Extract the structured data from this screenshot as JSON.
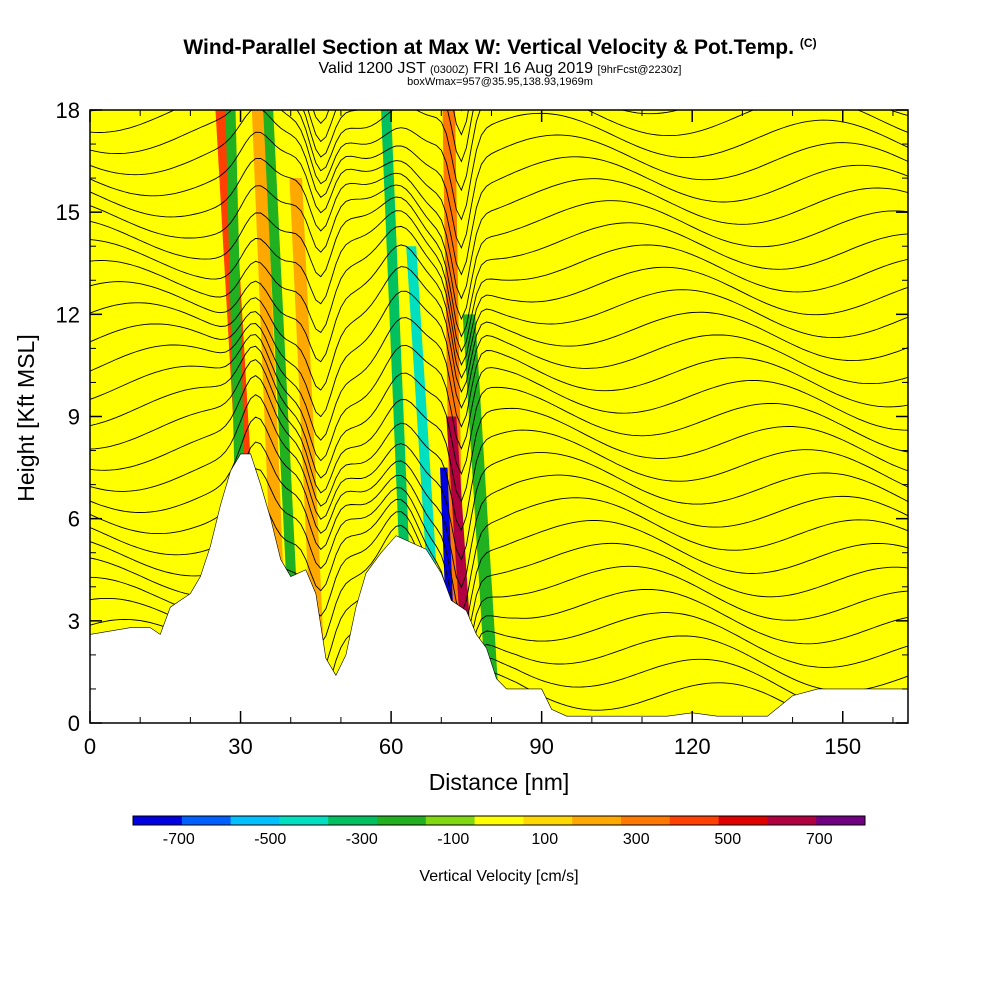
{
  "header": {
    "title": "Wind-Parallel Section at Max W: Vertical Velocity & Pot.Temp.",
    "copyright": "(C)",
    "valid_a": "Valid 1200 JST",
    "valid_z": "(0300Z)",
    "valid_b": "FRI 16 Aug 2019",
    "forecast": "[9hrFcst@2230z]",
    "box": "boxWmax=957@35.95,138.93,1969m"
  },
  "chart_data": {
    "type": "heatmap",
    "xlabel": "Distance [nm]",
    "ylabel": "Height [Kft MSL]",
    "xlim": [
      0,
      163
    ],
    "ylim": [
      0,
      18
    ],
    "x_ticks": [
      "0",
      "30",
      "60",
      "90",
      "120",
      "150"
    ],
    "x_tick_values": [
      0,
      30,
      60,
      90,
      120,
      150
    ],
    "y_ticks": [
      "0",
      "3",
      "6",
      "9",
      "12",
      "15",
      "18"
    ],
    "y_tick_values": [
      0,
      3,
      6,
      9,
      12,
      15,
      18
    ],
    "colorbar": {
      "label": "Vertical Velocity [cm/s]",
      "tick_labels": [
        "-700",
        "-500",
        "-300",
        "-100",
        "100",
        "300",
        "500",
        "700"
      ],
      "tick_values": [
        -700,
        -500,
        -300,
        -100,
        100,
        300,
        500,
        700
      ],
      "range": [
        -800,
        800
      ],
      "colors": [
        "#0000e0",
        "#0060ff",
        "#00c0ff",
        "#00e0c0",
        "#00c060",
        "#20b020",
        "#80d810",
        "#ffff00",
        "#ffd800",
        "#ffa800",
        "#ff7800",
        "#ff4000",
        "#e00000",
        "#b00040",
        "#700080"
      ]
    },
    "terrain_kft": [
      [
        0,
        2.6
      ],
      [
        8,
        2.8
      ],
      [
        12,
        2.8
      ],
      [
        14,
        2.6
      ],
      [
        16,
        3.4
      ],
      [
        18,
        3.6
      ],
      [
        20,
        3.8
      ],
      [
        22,
        4.3
      ],
      [
        24,
        5.2
      ],
      [
        26,
        6.4
      ],
      [
        28,
        7.4
      ],
      [
        30,
        7.9
      ],
      [
        32,
        7.9
      ],
      [
        34,
        7.0
      ],
      [
        36,
        6.0
      ],
      [
        38,
        4.8
      ],
      [
        40,
        4.3
      ],
      [
        43,
        4.5
      ],
      [
        45,
        3.8
      ],
      [
        47,
        1.9
      ],
      [
        49,
        1.4
      ],
      [
        51,
        2.0
      ],
      [
        53,
        3.4
      ],
      [
        55,
        4.4
      ],
      [
        58,
        5.0
      ],
      [
        61,
        5.5
      ],
      [
        64,
        5.3
      ],
      [
        67,
        5.1
      ],
      [
        70,
        4.4
      ],
      [
        72,
        3.6
      ],
      [
        75,
        3.3
      ],
      [
        77,
        2.6
      ],
      [
        79,
        2.2
      ],
      [
        81,
        1.3
      ],
      [
        83,
        1.0
      ],
      [
        86,
        1.0
      ],
      [
        90,
        1.0
      ],
      [
        92,
        0.4
      ],
      [
        95,
        0.2
      ],
      [
        100,
        0.2
      ],
      [
        105,
        0.2
      ],
      [
        115,
        0.2
      ],
      [
        120,
        0.3
      ],
      [
        125,
        0.2
      ],
      [
        135,
        0.2
      ],
      [
        140,
        0.8
      ],
      [
        145,
        1.0
      ],
      [
        150,
        1.0
      ],
      [
        156,
        1.0
      ],
      [
        163,
        1.0
      ]
    ],
    "series": [
      {
        "name": "updraft",
        "level": 400,
        "x": 33.5,
        "top": 18,
        "width": 3.0,
        "tilt": -7
      },
      {
        "name": "updraft",
        "level": 250,
        "x": 38.5,
        "top": 18,
        "width": 2.5,
        "tilt": -5
      },
      {
        "name": "downdraft",
        "level": -250,
        "x": 31.0,
        "top": 18,
        "width": 2.0,
        "tilt": -3
      },
      {
        "name": "downdraft",
        "level": -250,
        "x": 41.5,
        "top": 18,
        "width": 2.0,
        "tilt": -6
      },
      {
        "name": "updraft",
        "level": 250,
        "x": 46.0,
        "top": 16,
        "width": 2.5,
        "tilt": -5
      },
      {
        "name": "downdraft",
        "level": -300,
        "x": 64.0,
        "top": 18,
        "width": 2.0,
        "tilt": -5
      },
      {
        "name": "downdraft",
        "level": -450,
        "x": 70.0,
        "top": 14,
        "width": 2.0,
        "tilt": -6
      },
      {
        "name": "updraft",
        "level": 350,
        "x": 73.5,
        "top": 18,
        "width": 2.5,
        "tilt": -2
      },
      {
        "name": "updraft",
        "level": 650,
        "x": 76.0,
        "top": 9,
        "width": 2.0,
        "tilt": -4
      },
      {
        "name": "downdraft",
        "level": -700,
        "x": 72.5,
        "top": 7.5,
        "width": 1.5,
        "tilt": -2
      },
      {
        "name": "downdraft",
        "level": -200,
        "x": 80.5,
        "top": 12,
        "width": 2.5,
        "tilt": -5
      }
    ]
  }
}
